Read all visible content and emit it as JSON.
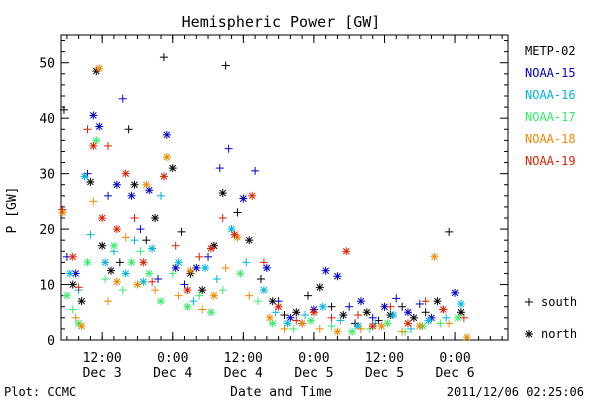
{
  "chart_data": {
    "type": "scatter",
    "title": "Hemispheric Power [GW]",
    "xlabel": "Date and Time",
    "ylabel": "P [GW]",
    "ylim": [
      0,
      55
    ],
    "xlim": [
      0,
      76
    ],
    "x_units": "hours after 2011-12-02 05:00 UT",
    "yticks": [
      0,
      10,
      20,
      30,
      40,
      50
    ],
    "xticks": [
      {
        "x": 7,
        "label": "12:00",
        "sublabel": "Dec 3"
      },
      {
        "x": 19,
        "label": "0:00",
        "sublabel": "Dec 4"
      },
      {
        "x": 31,
        "label": "12:00",
        "sublabel": "Dec 4"
      },
      {
        "x": 43,
        "label": "0:00",
        "sublabel": "Dec 5"
      },
      {
        "x": 55,
        "label": "12:00",
        "sublabel": "Dec 5"
      },
      {
        "x": 67,
        "label": "0:00",
        "sublabel": "Dec 6"
      }
    ],
    "legend_position": "right",
    "marker_legend": [
      {
        "symbol": "+",
        "label": "south"
      },
      {
        "symbol": "*",
        "label": "north"
      }
    ],
    "grid": false,
    "series": [
      {
        "name": "METP-02",
        "color": "#000000",
        "points": [
          {
            "x": 0.5,
            "y": 41.5,
            "m": "+"
          },
          {
            "x": 2,
            "y": 10,
            "m": "*"
          },
          {
            "x": 3.5,
            "y": 7,
            "m": "*"
          },
          {
            "x": 5,
            "y": 28.5,
            "m": "*"
          },
          {
            "x": 6,
            "y": 48.5,
            "m": "*"
          },
          {
            "x": 7,
            "y": 17,
            "m": "*"
          },
          {
            "x": 8.5,
            "y": 12.5,
            "m": "*"
          },
          {
            "x": 10,
            "y": 14,
            "m": "+"
          },
          {
            "x": 11.5,
            "y": 38,
            "m": "+"
          },
          {
            "x": 12.5,
            "y": 28,
            "m": "*"
          },
          {
            "x": 14.5,
            "y": 18,
            "m": "+"
          },
          {
            "x": 16,
            "y": 22,
            "m": "*"
          },
          {
            "x": 17.5,
            "y": 51,
            "m": "+"
          },
          {
            "x": 19,
            "y": 31,
            "m": "*"
          },
          {
            "x": 20.5,
            "y": 19.5,
            "m": "+"
          },
          {
            "x": 22,
            "y": 12,
            "m": "*"
          },
          {
            "x": 24,
            "y": 9,
            "m": "*"
          },
          {
            "x": 26,
            "y": 17,
            "m": "*"
          },
          {
            "x": 27.5,
            "y": 26.5,
            "m": "*"
          },
          {
            "x": 28,
            "y": 49.5,
            "m": "+"
          },
          {
            "x": 30,
            "y": 23,
            "m": "+"
          },
          {
            "x": 32,
            "y": 18,
            "m": "*"
          },
          {
            "x": 34,
            "y": 11,
            "m": "+"
          },
          {
            "x": 36,
            "y": 7,
            "m": "*"
          },
          {
            "x": 38,
            "y": 4.5,
            "m": "+"
          },
          {
            "x": 40,
            "y": 5,
            "m": "*"
          },
          {
            "x": 42,
            "y": 8,
            "m": "+"
          },
          {
            "x": 44,
            "y": 9.5,
            "m": "*"
          },
          {
            "x": 46,
            "y": 6,
            "m": "+"
          },
          {
            "x": 48,
            "y": 4.5,
            "m": "*"
          },
          {
            "x": 50,
            "y": 3,
            "m": "+"
          },
          {
            "x": 52,
            "y": 5,
            "m": "*"
          },
          {
            "x": 54,
            "y": 3.5,
            "m": "+"
          },
          {
            "x": 56,
            "y": 4.5,
            "m": "*"
          },
          {
            "x": 58,
            "y": 6,
            "m": "+"
          },
          {
            "x": 60,
            "y": 4,
            "m": "*"
          },
          {
            "x": 62,
            "y": 5,
            "m": "+"
          },
          {
            "x": 64,
            "y": 7,
            "m": "*"
          },
          {
            "x": 66,
            "y": 19.5,
            "m": "+"
          },
          {
            "x": 68,
            "y": 5,
            "m": "*"
          }
        ]
      },
      {
        "name": "NOAA-15",
        "color": "#0000cc",
        "points": [
          {
            "x": 1,
            "y": 15,
            "m": "+"
          },
          {
            "x": 2.5,
            "y": 12,
            "m": "*"
          },
          {
            "x": 4.5,
            "y": 30,
            "m": "+"
          },
          {
            "x": 5.5,
            "y": 40.5,
            "m": "*"
          },
          {
            "x": 6.5,
            "y": 38.5,
            "m": "*"
          },
          {
            "x": 8,
            "y": 26,
            "m": "+"
          },
          {
            "x": 9.5,
            "y": 28,
            "m": "*"
          },
          {
            "x": 10.5,
            "y": 43.5,
            "m": "+"
          },
          {
            "x": 12,
            "y": 26,
            "m": "*"
          },
          {
            "x": 13.5,
            "y": 20,
            "m": "+"
          },
          {
            "x": 15,
            "y": 27,
            "m": "*"
          },
          {
            "x": 16.5,
            "y": 11,
            "m": "+"
          },
          {
            "x": 18,
            "y": 37,
            "m": "*"
          },
          {
            "x": 19.5,
            "y": 13,
            "m": "*"
          },
          {
            "x": 21,
            "y": 10,
            "m": "+"
          },
          {
            "x": 23,
            "y": 13,
            "m": "*"
          },
          {
            "x": 25,
            "y": 15,
            "m": "+"
          },
          {
            "x": 27,
            "y": 31,
            "m": "+"
          },
          {
            "x": 28.5,
            "y": 34.5,
            "m": "+"
          },
          {
            "x": 31,
            "y": 25.5,
            "m": "*"
          },
          {
            "x": 33,
            "y": 30.5,
            "m": "+"
          },
          {
            "x": 35,
            "y": 13,
            "m": "*"
          },
          {
            "x": 37,
            "y": 7,
            "m": "+"
          },
          {
            "x": 39,
            "y": 4,
            "m": "*"
          },
          {
            "x": 41,
            "y": 3,
            "m": "+"
          },
          {
            "x": 43,
            "y": 5.5,
            "m": "*"
          },
          {
            "x": 45,
            "y": 12.5,
            "m": "*"
          },
          {
            "x": 47,
            "y": 11.5,
            "m": "*"
          },
          {
            "x": 49,
            "y": 6,
            "m": "+"
          },
          {
            "x": 51,
            "y": 7,
            "m": "*"
          },
          {
            "x": 53,
            "y": 4,
            "m": "+"
          },
          {
            "x": 55,
            "y": 6,
            "m": "*"
          },
          {
            "x": 57,
            "y": 7.5,
            "m": "+"
          },
          {
            "x": 59,
            "y": 5,
            "m": "*"
          },
          {
            "x": 61,
            "y": 6.5,
            "m": "+"
          },
          {
            "x": 63,
            "y": 4,
            "m": "*"
          },
          {
            "x": 65,
            "y": 5.5,
            "m": "+"
          },
          {
            "x": 67,
            "y": 8.5,
            "m": "*"
          }
        ]
      },
      {
        "name": "NOAA-16",
        "color": "#00b4dd",
        "points": [
          {
            "x": 1.5,
            "y": 12,
            "m": "*"
          },
          {
            "x": 3,
            "y": 9,
            "m": "+"
          },
          {
            "x": 4,
            "y": 29.5,
            "m": "*"
          },
          {
            "x": 5,
            "y": 19,
            "m": "+"
          },
          {
            "x": 7.5,
            "y": 14,
            "m": "*"
          },
          {
            "x": 9,
            "y": 16,
            "m": "+"
          },
          {
            "x": 11,
            "y": 12,
            "m": "*"
          },
          {
            "x": 12.5,
            "y": 18,
            "m": "+"
          },
          {
            "x": 14,
            "y": 10.5,
            "m": "*"
          },
          {
            "x": 15.5,
            "y": 16.5,
            "m": "*"
          },
          {
            "x": 17,
            "y": 26,
            "m": "+"
          },
          {
            "x": 20,
            "y": 14,
            "m": "*"
          },
          {
            "x": 22.5,
            "y": 7,
            "m": "+"
          },
          {
            "x": 24.5,
            "y": 13,
            "m": "*"
          },
          {
            "x": 26.5,
            "y": 11,
            "m": "+"
          },
          {
            "x": 29,
            "y": 20,
            "m": "*"
          },
          {
            "x": 31.5,
            "y": 14,
            "m": "+"
          },
          {
            "x": 34.5,
            "y": 9,
            "m": "*"
          },
          {
            "x": 36.5,
            "y": 5,
            "m": "+"
          },
          {
            "x": 38.5,
            "y": 3,
            "m": "*"
          },
          {
            "x": 41.5,
            "y": 4.5,
            "m": "+"
          },
          {
            "x": 44.5,
            "y": 6,
            "m": "*"
          },
          {
            "x": 47.5,
            "y": 3.5,
            "m": "+"
          },
          {
            "x": 50.5,
            "y": 2.5,
            "m": "*"
          },
          {
            "x": 53.5,
            "y": 3,
            "m": "+"
          },
          {
            "x": 56.5,
            "y": 4.5,
            "m": "*"
          },
          {
            "x": 59.5,
            "y": 2,
            "m": "+"
          },
          {
            "x": 62.5,
            "y": 3.5,
            "m": "*"
          },
          {
            "x": 65.5,
            "y": 4,
            "m": "+"
          },
          {
            "x": 68,
            "y": 6.5,
            "m": "*"
          }
        ]
      },
      {
        "name": "NOAA-17",
        "color": "#33ee66",
        "points": [
          {
            "x": 1,
            "y": 8,
            "m": "*"
          },
          {
            "x": 2,
            "y": 5.5,
            "m": "+"
          },
          {
            "x": 3,
            "y": 3,
            "m": "*"
          },
          {
            "x": 4.5,
            "y": 14,
            "m": "*"
          },
          {
            "x": 6,
            "y": 36,
            "m": "*"
          },
          {
            "x": 7.5,
            "y": 11,
            "m": "+"
          },
          {
            "x": 9,
            "y": 17,
            "m": "*"
          },
          {
            "x": 10.5,
            "y": 9,
            "m": "+"
          },
          {
            "x": 12,
            "y": 14,
            "m": "*"
          },
          {
            "x": 13.5,
            "y": 16,
            "m": "+"
          },
          {
            "x": 15,
            "y": 12,
            "m": "*"
          },
          {
            "x": 17,
            "y": 7,
            "m": "*"
          },
          {
            "x": 19,
            "y": 12,
            "m": "+"
          },
          {
            "x": 21.5,
            "y": 6,
            "m": "*"
          },
          {
            "x": 23.5,
            "y": 8,
            "m": "+"
          },
          {
            "x": 25.5,
            "y": 5,
            "m": "*"
          },
          {
            "x": 27.5,
            "y": 9,
            "m": "+"
          },
          {
            "x": 30.5,
            "y": 12,
            "m": "*"
          },
          {
            "x": 33.5,
            "y": 7,
            "m": "+"
          },
          {
            "x": 36,
            "y": 3,
            "m": "*"
          },
          {
            "x": 39.5,
            "y": 2,
            "m": "+"
          },
          {
            "x": 42.5,
            "y": 3.5,
            "m": "*"
          },
          {
            "x": 46,
            "y": 2.5,
            "m": "+"
          },
          {
            "x": 49.5,
            "y": 1.5,
            "m": "*"
          },
          {
            "x": 52.5,
            "y": 2,
            "m": "+"
          },
          {
            "x": 55.5,
            "y": 3,
            "m": "*"
          },
          {
            "x": 58.5,
            "y": 1.5,
            "m": "+"
          },
          {
            "x": 61.5,
            "y": 2.5,
            "m": "*"
          },
          {
            "x": 64.5,
            "y": 3,
            "m": "+"
          },
          {
            "x": 67.5,
            "y": 4,
            "m": "*"
          }
        ]
      },
      {
        "name": "NOAA-18",
        "color": "#ee8800",
        "points": [
          {
            "x": 0.3,
            "y": 23,
            "m": "*"
          },
          {
            "x": 2.5,
            "y": 4,
            "m": "+"
          },
          {
            "x": 3.5,
            "y": 2.5,
            "m": "*"
          },
          {
            "x": 5.5,
            "y": 25,
            "m": "+"
          },
          {
            "x": 6.5,
            "y": 49,
            "m": "*"
          },
          {
            "x": 8,
            "y": 7,
            "m": "+"
          },
          {
            "x": 9.5,
            "y": 10.5,
            "m": "*"
          },
          {
            "x": 11,
            "y": 18.5,
            "m": "+"
          },
          {
            "x": 13,
            "y": 10,
            "m": "*"
          },
          {
            "x": 14.5,
            "y": 28,
            "m": "*"
          },
          {
            "x": 16,
            "y": 9,
            "m": "+"
          },
          {
            "x": 18,
            "y": 33,
            "m": "*"
          },
          {
            "x": 20,
            "y": 8,
            "m": "+"
          },
          {
            "x": 22,
            "y": 12.5,
            "m": "*"
          },
          {
            "x": 24,
            "y": 5.5,
            "m": "+"
          },
          {
            "x": 26,
            "y": 8,
            "m": "*"
          },
          {
            "x": 28,
            "y": 13,
            "m": "+"
          },
          {
            "x": 30,
            "y": 18.5,
            "m": "*"
          },
          {
            "x": 32,
            "y": 8,
            "m": "+"
          },
          {
            "x": 35.5,
            "y": 4,
            "m": "*"
          },
          {
            "x": 38,
            "y": 2,
            "m": "+"
          },
          {
            "x": 41,
            "y": 3,
            "m": "*"
          },
          {
            "x": 44,
            "y": 2,
            "m": "+"
          },
          {
            "x": 47,
            "y": 1.5,
            "m": "*"
          },
          {
            "x": 51,
            "y": 2,
            "m": "+"
          },
          {
            "x": 54.5,
            "y": 2.5,
            "m": "*"
          },
          {
            "x": 58,
            "y": 1.5,
            "m": "+"
          },
          {
            "x": 61,
            "y": 2.5,
            "m": "*"
          },
          {
            "x": 63.5,
            "y": 15,
            "m": "*"
          },
          {
            "x": 66,
            "y": 3,
            "m": "+"
          },
          {
            "x": 69,
            "y": 0.5,
            "m": "*"
          }
        ]
      },
      {
        "name": "NOAA-19",
        "color": "#dd2200",
        "points": [
          {
            "x": 0.2,
            "y": 23.5,
            "m": "+"
          },
          {
            "x": 2,
            "y": 15,
            "m": "*"
          },
          {
            "x": 3,
            "y": 9.5,
            "m": "+"
          },
          {
            "x": 4.5,
            "y": 38,
            "m": "+"
          },
          {
            "x": 5.5,
            "y": 35,
            "m": "*"
          },
          {
            "x": 7,
            "y": 22,
            "m": "*"
          },
          {
            "x": 8,
            "y": 35,
            "m": "+"
          },
          {
            "x": 9.5,
            "y": 20,
            "m": "*"
          },
          {
            "x": 11,
            "y": 30,
            "m": "*"
          },
          {
            "x": 12.5,
            "y": 22,
            "m": "+"
          },
          {
            "x": 14,
            "y": 14,
            "m": "*"
          },
          {
            "x": 15.5,
            "y": 10.5,
            "m": "+"
          },
          {
            "x": 17.5,
            "y": 29.5,
            "m": "*"
          },
          {
            "x": 19.5,
            "y": 17,
            "m": "+"
          },
          {
            "x": 21.5,
            "y": 9,
            "m": "*"
          },
          {
            "x": 23.5,
            "y": 15,
            "m": "+"
          },
          {
            "x": 25.5,
            "y": 16.5,
            "m": "*"
          },
          {
            "x": 27.5,
            "y": 22,
            "m": "+"
          },
          {
            "x": 29.5,
            "y": 19,
            "m": "*"
          },
          {
            "x": 32.5,
            "y": 26,
            "m": "*"
          },
          {
            "x": 34.5,
            "y": 14,
            "m": "+"
          },
          {
            "x": 37,
            "y": 6,
            "m": "*"
          },
          {
            "x": 40,
            "y": 3.5,
            "m": "+"
          },
          {
            "x": 43,
            "y": 5,
            "m": "*"
          },
          {
            "x": 46,
            "y": 4,
            "m": "+"
          },
          {
            "x": 48.5,
            "y": 16,
            "m": "*"
          },
          {
            "x": 50.5,
            "y": 4.5,
            "m": "+"
          },
          {
            "x": 53,
            "y": 2.5,
            "m": "*"
          },
          {
            "x": 56,
            "y": 6,
            "m": "+"
          },
          {
            "x": 59,
            "y": 3,
            "m": "*"
          },
          {
            "x": 62,
            "y": 7,
            "m": "+"
          },
          {
            "x": 65,
            "y": 5.5,
            "m": "*"
          },
          {
            "x": 68.5,
            "y": 4,
            "m": "+"
          }
        ]
      }
    ]
  },
  "footer": {
    "left": "Plot: CCMC",
    "right": "2011/12/06 02:25:06"
  }
}
